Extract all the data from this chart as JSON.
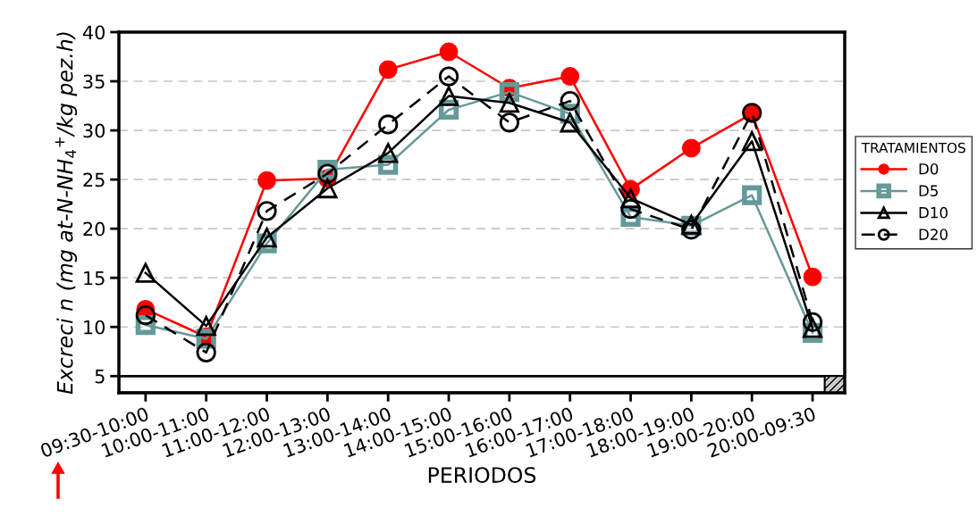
{
  "chart_data": {
    "type": "line",
    "xlabel": "PERIODOS",
    "ylabel": "Excreci n (mg at-N-NH$_{4}$$^{+}$/kg pez.h)",
    "legend_title": "TRATAMIENTOS",
    "categories": [
      "09:30-10:00",
      "10:00-11:00",
      "11:00-12:00",
      "12:00-13:00",
      "13:00-14:00",
      "14:00-15:00",
      "15:00-16:00",
      "16:00-17:00",
      "17:00-18:00",
      "18:00-19:00",
      "19:00-20:00",
      "20:00-09:30"
    ],
    "series": [
      {
        "name": "D0",
        "color": "#ff0000",
        "marker": "circle",
        "line_style": "solid",
        "values": [
          11.8,
          9.0,
          24.9,
          25.1,
          36.2,
          38.0,
          34.3,
          35.5,
          24.0,
          28.2,
          31.7,
          15.1
        ]
      },
      {
        "name": "D5",
        "color": "#669999",
        "marker": "square",
        "line_style": "solid",
        "values": [
          10.2,
          8.8,
          18.5,
          26.0,
          26.5,
          32.1,
          33.9,
          31.7,
          21.2,
          20.3,
          23.4,
          9.4
        ]
      },
      {
        "name": "D10",
        "color": "#000000",
        "marker": "triangle",
        "line_style": "solid",
        "values": [
          15.5,
          10.1,
          19.1,
          24.1,
          27.7,
          33.5,
          32.8,
          30.8,
          23.1,
          20.4,
          28.9,
          9.9
        ]
      },
      {
        "name": "D20",
        "color": "#000000",
        "marker": "circle",
        "line_style": "dashed",
        "values": [
          11.2,
          7.4,
          21.8,
          25.6,
          30.6,
          35.5,
          30.8,
          33.0,
          22.0,
          19.9,
          31.8,
          10.5
        ]
      }
    ],
    "ylim": [
      3.3,
      40
    ],
    "yticks": [
      5,
      10,
      15,
      20,
      25,
      30,
      35,
      40
    ],
    "grid": "y",
    "legend": "right"
  }
}
